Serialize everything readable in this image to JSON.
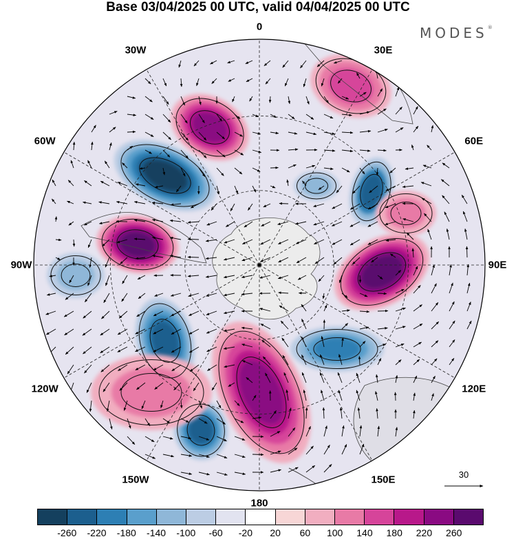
{
  "title": "Base 03/04/2025 00 UTC, valid 04/04/2025 00 UTC",
  "brand": "MODES",
  "brand_mark": "®",
  "longitude_labels": [
    "0",
    "30E",
    "60E",
    "90E",
    "120E",
    "150E",
    "180",
    "150W",
    "120W",
    "90W",
    "60W",
    "30W"
  ],
  "reference_vector": {
    "label": "30"
  },
  "colorbar": {
    "ticks": [
      "-260",
      "-220",
      "-180",
      "-140",
      "-100",
      "-60",
      "-20",
      "20",
      "60",
      "100",
      "140",
      "180",
      "220",
      "260"
    ],
    "colors": [
      "#14405e",
      "#1c5f8e",
      "#2d7fb4",
      "#5a9fcc",
      "#8fb7d8",
      "#bccde4",
      "#e2e3f0",
      "#ffffff",
      "#f7d6d6",
      "#f1aec0",
      "#e87aa6",
      "#d6449a",
      "#b8188a",
      "#8a0a82",
      "#5a0a6e"
    ]
  },
  "colors": {
    "antarctica": "#ececec",
    "outline": "#333333",
    "graticule": "#222222"
  },
  "icons": [
    "wind-vector-arrow",
    "reference-arrow"
  ]
}
